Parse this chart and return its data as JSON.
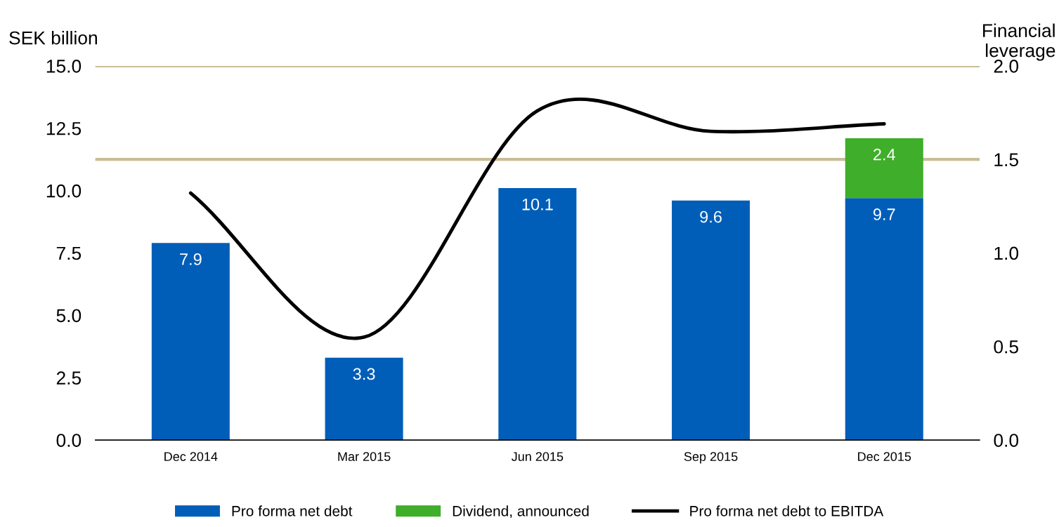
{
  "chart_data": {
    "type": "bar",
    "stacked": true,
    "ylabel": "SEK billion",
    "y2label": "Financial\nleverage",
    "categories": [
      "Dec 2014",
      "Mar 2015",
      "Jun 2015",
      "Sep 2015",
      "Dec 2015"
    ],
    "series": [
      {
        "name": "Pro forma net debt",
        "color": "#005eb8",
        "values": [
          7.9,
          3.3,
          10.1,
          9.6,
          9.7
        ],
        "value_labels": [
          "7.9",
          "3.3",
          "10.1",
          "9.6",
          "9.7"
        ]
      },
      {
        "name": "Dividend, announced",
        "color": "#3fae2a",
        "values": [
          null,
          null,
          null,
          null,
          2.4
        ],
        "value_labels": [
          null,
          null,
          null,
          null,
          "2.4"
        ]
      },
      {
        "name": "Pro forma net debt to EBITDA",
        "type": "line",
        "axis": "y2",
        "color": "#000000",
        "values": [
          1.32,
          0.55,
          1.76,
          1.65,
          1.69
        ]
      }
    ],
    "ylim": [
      0,
      15
    ],
    "yticks": [
      {
        "value": 0,
        "label": "0.0"
      },
      {
        "value": 2.5,
        "label": "2.5"
      },
      {
        "value": 5,
        "label": "5.0"
      },
      {
        "value": 7.5,
        "label": "7.5"
      },
      {
        "value": 10,
        "label": "10.0"
      },
      {
        "value": 12.5,
        "label": "12.5"
      },
      {
        "value": 15,
        "label": "15.0"
      }
    ],
    "y2lim": [
      0,
      2
    ],
    "y2ticks": [
      {
        "value": 0,
        "label": "0.0"
      },
      {
        "value": 0.5,
        "label": "0.5"
      },
      {
        "value": 1,
        "label": "1.0"
      },
      {
        "value": 1.5,
        "label": "1.5"
      },
      {
        "value": 2,
        "label": "2.0"
      }
    ],
    "ref_lines": [
      {
        "axis": "y2",
        "value": 2.0,
        "color": "#c8bd96"
      },
      {
        "axis": "y2",
        "value": 1.5,
        "color": "#c8bd96"
      }
    ],
    "grid": false,
    "legend": "bottom"
  }
}
